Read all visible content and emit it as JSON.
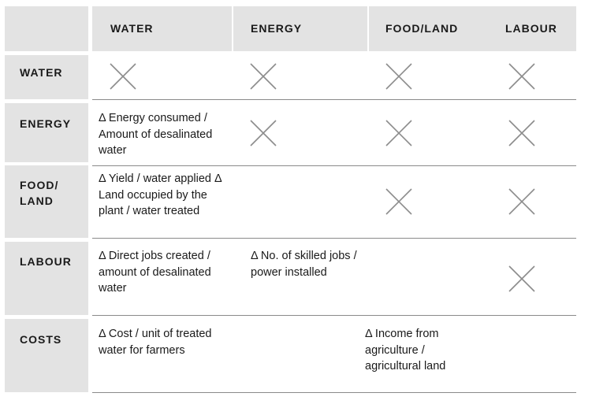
{
  "columns": [
    "WATER",
    "ENERGY",
    "FOOD/LAND",
    "LABOUR"
  ],
  "rows": [
    {
      "label": "WATER",
      "cells": [
        "",
        "",
        "",
        ""
      ]
    },
    {
      "label": "ENERGY",
      "cells": [
        "Δ Energy consumed / Amount of desalinated water",
        "",
        "",
        ""
      ]
    },
    {
      "label": "FOOD/ LAND",
      "cells": [
        "Δ Yield / water applied Δ Land occupied by the plant / water treated",
        "",
        "",
        ""
      ]
    },
    {
      "label": "LABOUR",
      "cells": [
        "Δ Direct jobs created / amount of desalinated water",
        "Δ No. of skilled jobs / power installed",
        "",
        ""
      ]
    },
    {
      "label": "COSTS",
      "cells": [
        "Δ Cost / unit of treated water for farmers",
        "",
        "Δ Income from agriculture / agricultural land",
        ""
      ]
    }
  ],
  "marks": {
    "x_icon": "cross-icon",
    "crossed_cells": [
      [
        0,
        0
      ],
      [
        0,
        1
      ],
      [
        0,
        2
      ],
      [
        0,
        3
      ],
      [
        1,
        1
      ],
      [
        1,
        2
      ],
      [
        1,
        3
      ],
      [
        2,
        2
      ],
      [
        2,
        3
      ],
      [
        3,
        3
      ]
    ]
  },
  "colors": {
    "label_bg": "#e3e3e3",
    "rule": "#8a8a8a",
    "cross": "#8c8c8c"
  }
}
